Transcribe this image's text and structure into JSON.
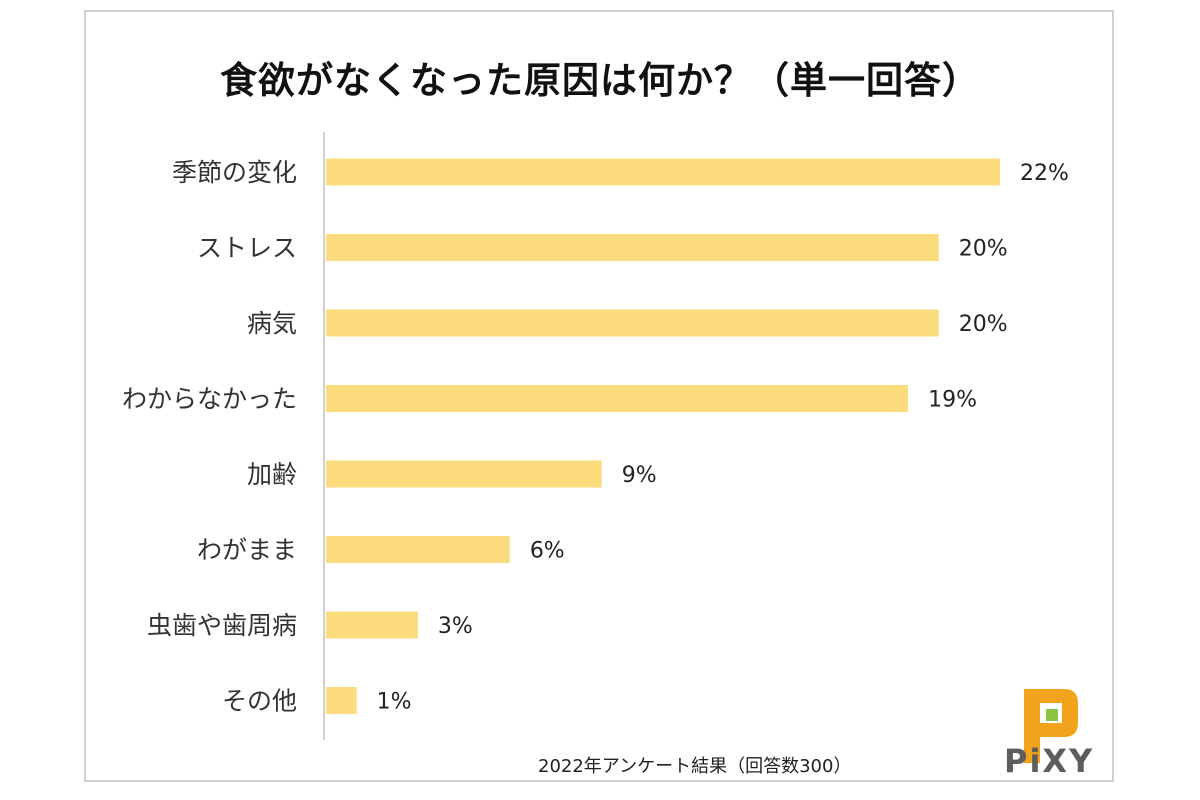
{
  "chart_data": {
    "type": "bar",
    "orientation": "horizontal",
    "title": "食欲がなくなった原因は何か？（単一回答）",
    "categories": [
      "季節の変化",
      "ストレス",
      "病気",
      "わからなかった",
      "加齢",
      "わがまま",
      "虫歯や歯周病",
      "その他"
    ],
    "values": [
      22,
      20,
      20,
      19,
      9,
      6,
      3,
      1
    ],
    "value_labels": [
      "22%",
      "20%",
      "20%",
      "19%",
      "9%",
      "6%",
      "3%",
      "1%"
    ],
    "xlim": [
      0,
      22
    ],
    "grid": false,
    "bar_color": "#fbdb7c"
  },
  "footer": {
    "note": "2022年アンケート結果（回答数300）"
  },
  "logo": {
    "text": "PiXY",
    "icon": "pixy-logo-icon",
    "color_orange": "#f3a21c",
    "color_green": "#8cc43f"
  }
}
